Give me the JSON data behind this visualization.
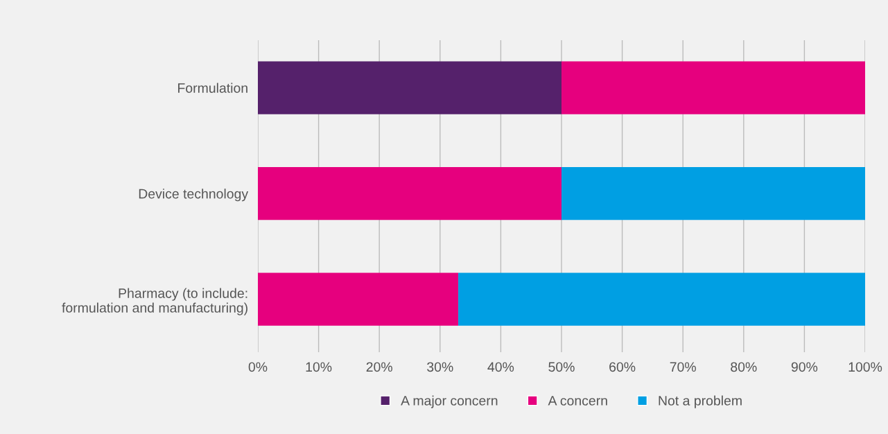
{
  "chart_data": {
    "type": "bar",
    "orientation": "horizontal",
    "stacked": true,
    "categories": [
      "Formulation",
      "Device technology",
      "Pharmacy (to include:\nformulation and manufacturing)"
    ],
    "series": [
      {
        "name": "A major concern",
        "color": "#55216b",
        "values": [
          50,
          0,
          0
        ]
      },
      {
        "name": "A concern",
        "color": "#e6007e",
        "values": [
          50,
          50,
          33
        ]
      },
      {
        "name": "Not a problem",
        "color": "#009fe3",
        "values": [
          0,
          50,
          67
        ]
      }
    ],
    "xlim": [
      0,
      100
    ],
    "xticks": [
      {
        "value": 0,
        "label": "0%"
      },
      {
        "value": 10,
        "label": "10%"
      },
      {
        "value": 20,
        "label": "20%"
      },
      {
        "value": 30,
        "label": "30%"
      },
      {
        "value": 40,
        "label": "40%"
      },
      {
        "value": 50,
        "label": "50%"
      },
      {
        "value": 60,
        "label": "60%"
      },
      {
        "value": 70,
        "label": "70%"
      },
      {
        "value": 80,
        "label": "80%"
      },
      {
        "value": 90,
        "label": "90%"
      },
      {
        "value": 100,
        "label": "100%"
      }
    ],
    "grid": "x",
    "legend": "bottom"
  }
}
